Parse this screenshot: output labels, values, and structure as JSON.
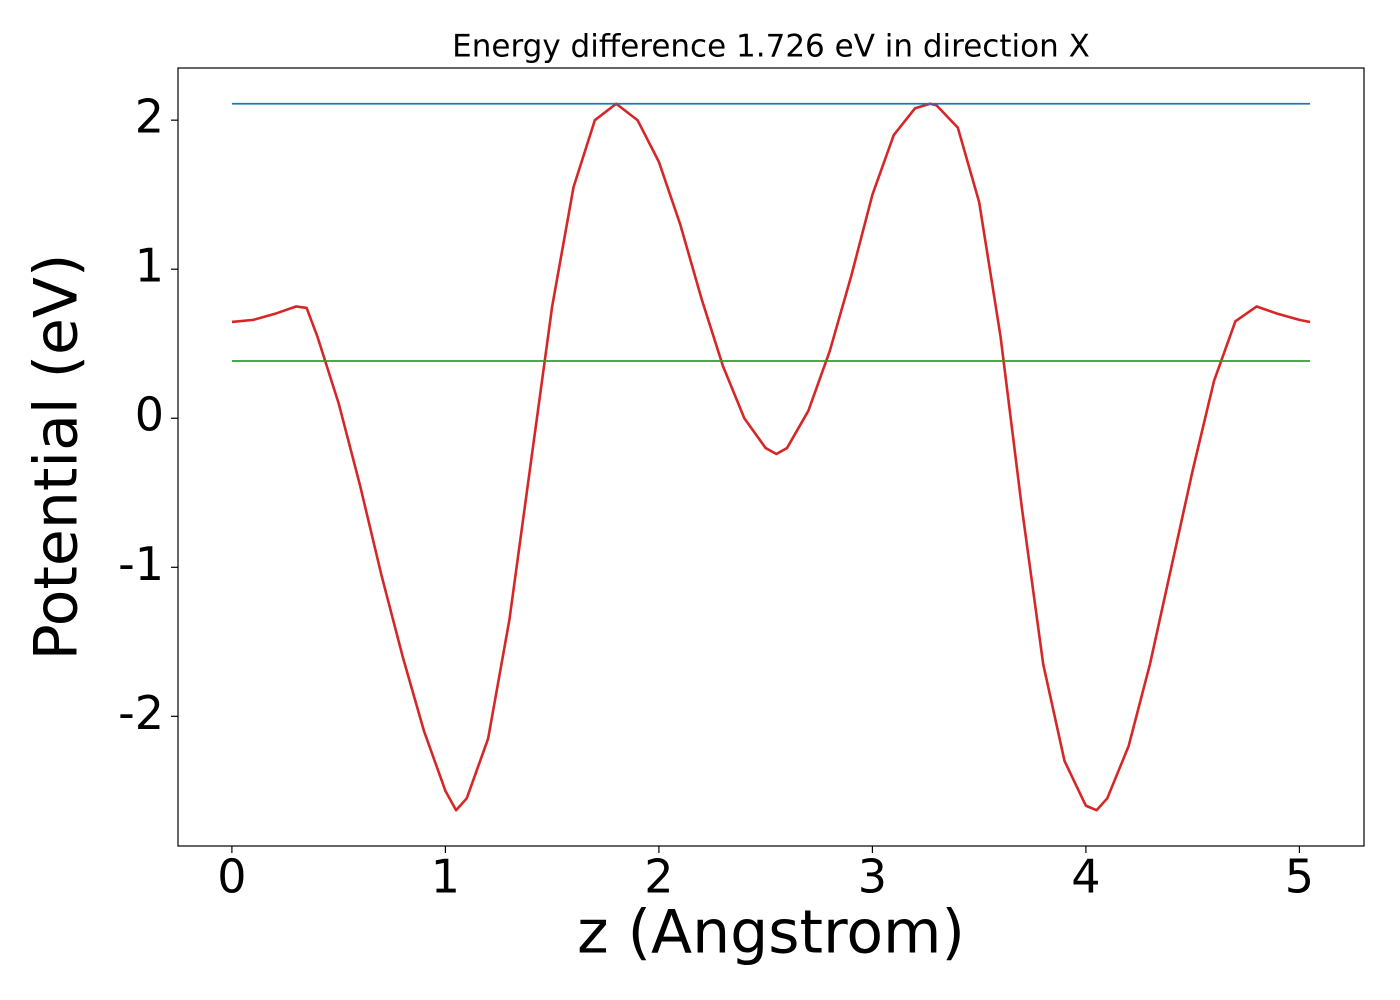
{
  "chart_data": {
    "type": "line",
    "title": "Energy difference 1.726 eV in direction X",
    "x_label": "z (Angstrom)",
    "y_label": "Potential (eV)",
    "xlim": [
      -0.2525,
      5.3025
    ],
    "ylim": [
      -2.87,
      2.35
    ],
    "xticks": [
      0,
      1,
      2,
      3,
      4,
      5
    ],
    "yticks": [
      -2,
      -1,
      0,
      1,
      2
    ],
    "grid": false,
    "series": [
      {
        "color": "#d62728",
        "x": [
          0,
          0.1,
          0.2,
          0.3,
          0.35,
          0.4,
          0.5,
          0.6,
          0.7,
          0.8,
          0.9,
          1.0,
          1.05,
          1.1,
          1.2,
          1.3,
          1.4,
          1.5,
          1.6,
          1.7,
          1.8,
          1.9,
          2.0,
          2.1,
          2.2,
          2.3,
          2.4,
          2.5,
          2.55,
          2.6,
          2.7,
          2.8,
          2.9,
          3.0,
          3.1,
          3.2,
          3.27,
          3.3,
          3.4,
          3.5,
          3.6,
          3.7,
          3.8,
          3.9,
          4.0,
          4.05,
          4.1,
          4.2,
          4.3,
          4.4,
          4.5,
          4.6,
          4.7,
          4.8,
          4.9,
          5.0,
          5.05
        ],
        "values": [
          0.646,
          0.66,
          0.7,
          0.75,
          0.74,
          0.55,
          0.1,
          -0.45,
          -1.05,
          -1.6,
          -2.1,
          -2.5,
          -2.63,
          -2.55,
          -2.15,
          -1.35,
          -0.3,
          0.75,
          1.55,
          2.0,
          2.11,
          2.0,
          1.72,
          1.3,
          0.8,
          0.35,
          0.0,
          -0.2,
          -0.24,
          -0.2,
          0.05,
          0.45,
          0.95,
          1.5,
          1.9,
          2.08,
          2.11,
          2.1,
          1.95,
          1.45,
          0.55,
          -0.6,
          -1.65,
          -2.3,
          -2.6,
          -2.63,
          -2.55,
          -2.2,
          -1.65,
          -1.0,
          -0.35,
          0.25,
          0.65,
          0.75,
          0.7,
          0.66,
          0.646
        ]
      },
      {
        "color": "#1f77b4",
        "x": [
          0,
          5.05
        ],
        "values": [
          2.11,
          2.11
        ]
      },
      {
        "color": "#2ca02c",
        "x": [
          0,
          5.05
        ],
        "values": [
          0.384,
          0.384
        ]
      }
    ]
  }
}
